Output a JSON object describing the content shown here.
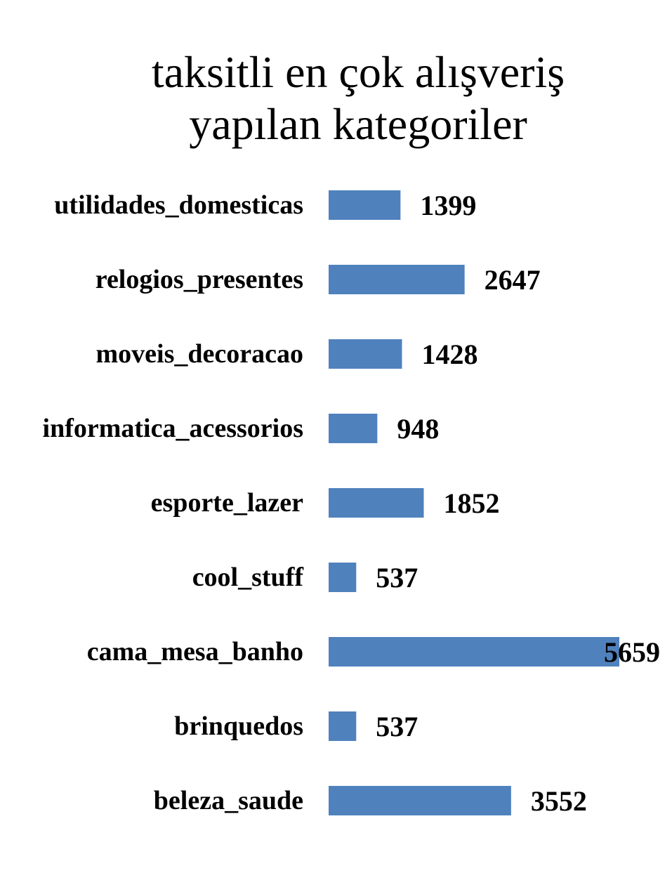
{
  "chart_data": {
    "type": "bar",
    "orientation": "horizontal",
    "title": "taksitli en çok alışveriş yapılan kategoriler",
    "title_lines": [
      "taksitli en çok alışveriş",
      "yapılan kategoriler"
    ],
    "categories": [
      "utilidades_domesticas",
      "relogios_presentes",
      "moveis_decoracao",
      "informatica_acessorios",
      "esporte_lazer",
      "cool_stuff",
      "cama_mesa_banho",
      "brinquedos",
      "beleza_saude"
    ],
    "values": [
      1399,
      2647,
      1428,
      948,
      1852,
      537,
      5659,
      537,
      3552
    ],
    "bar_color": "#4F81BD",
    "grid": false,
    "legend": "none",
    "axis_visible": false,
    "xlim": [
      0,
      5659
    ]
  }
}
